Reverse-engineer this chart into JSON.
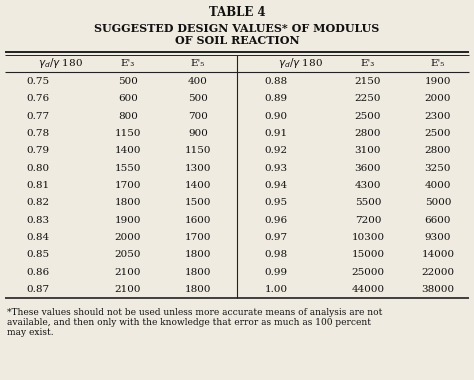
{
  "title1": "TABLE 4",
  "title2": "SUGGESTED DESIGN VALUES* OF MODULUS",
  "title3": "OF SOIL REACTION",
  "left_data": [
    [
      "0.75",
      "500",
      "400"
    ],
    [
      "0.76",
      "600",
      "500"
    ],
    [
      "0.77",
      "800",
      "700"
    ],
    [
      "0.78",
      "1150",
      "900"
    ],
    [
      "0.79",
      "1400",
      "1150"
    ],
    [
      "0.80",
      "1550",
      "1300"
    ],
    [
      "0.81",
      "1700",
      "1400"
    ],
    [
      "0.82",
      "1800",
      "1500"
    ],
    [
      "0.83",
      "1900",
      "1600"
    ],
    [
      "0.84",
      "2000",
      "1700"
    ],
    [
      "0.85",
      "2050",
      "1800"
    ],
    [
      "0.86",
      "2100",
      "1800"
    ],
    [
      "0.87",
      "2100",
      "1800"
    ]
  ],
  "right_data": [
    [
      "0.88",
      "2150",
      "1900"
    ],
    [
      "0.89",
      "2250",
      "2000"
    ],
    [
      "0.90",
      "2500",
      "2300"
    ],
    [
      "0.91",
      "2800",
      "2500"
    ],
    [
      "0.92",
      "3100",
      "2800"
    ],
    [
      "0.93",
      "3600",
      "3250"
    ],
    [
      "0.94",
      "4300",
      "4000"
    ],
    [
      "0.95",
      "5500",
      "5000"
    ],
    [
      "0.96",
      "7200",
      "6600"
    ],
    [
      "0.97",
      "10300",
      "9300"
    ],
    [
      "0.98",
      "15000",
      "14000"
    ],
    [
      "0.99",
      "25000",
      "22000"
    ],
    [
      "1.00",
      "44000",
      "38000"
    ]
  ],
  "footnote_line1": "*These values should not be used unless more accurate means of analysis are not",
  "footnote_line2": "available, and then only with the knowledge that error as much as 100 percent",
  "footnote_line3": "may exist.",
  "bg_color": "#f0ebe0",
  "text_color": "#111111",
  "line_color": "#222222",
  "title1_fontsize": 8.5,
  "title2_fontsize": 8.0,
  "header_fontsize": 7.5,
  "data_fontsize": 7.5,
  "footnote_fontsize": 6.5
}
